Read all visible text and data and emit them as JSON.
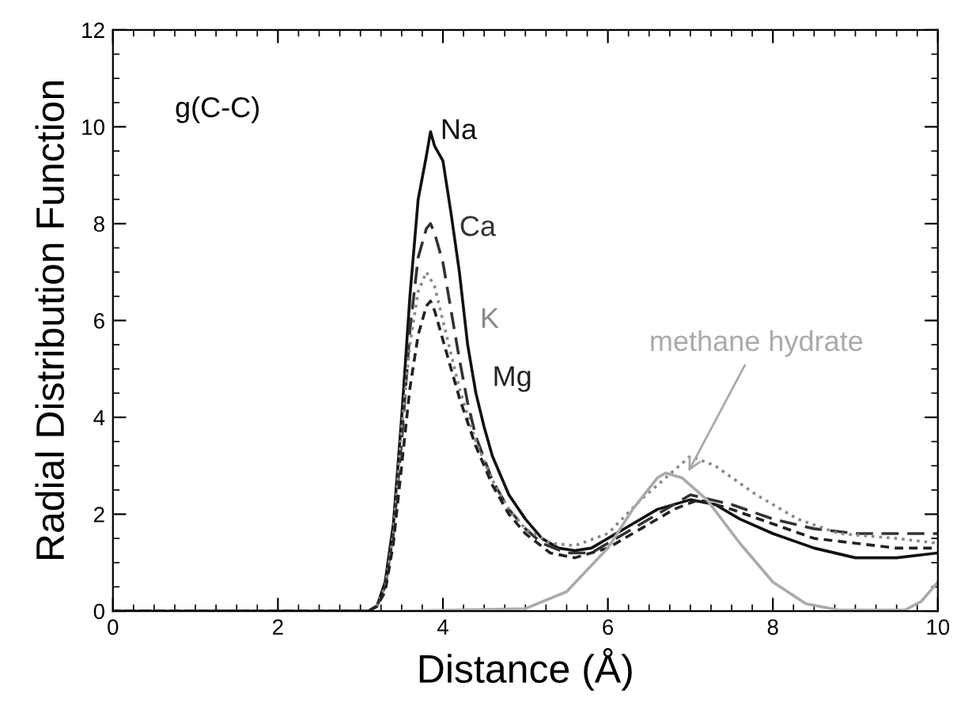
{
  "chart_data": {
    "type": "line",
    "xlabel": "Distance (Å)",
    "ylabel": "Radial Distribution Function",
    "annotations": [
      "g(C-C)"
    ],
    "xlim": [
      0,
      10
    ],
    "ylim": [
      0,
      12
    ],
    "xticks": [
      0,
      2,
      4,
      6,
      8,
      10
    ],
    "yticks": [
      0,
      2,
      4,
      6,
      8,
      10,
      12
    ],
    "grid": false,
    "legend": false,
    "series": [
      {
        "name": "Na",
        "color": "#111111",
        "line_style": "solid",
        "x": [
          0,
          3.1,
          3.2,
          3.3,
          3.4,
          3.5,
          3.6,
          3.7,
          3.8,
          3.85,
          3.9,
          4.0,
          4.1,
          4.2,
          4.3,
          4.4,
          4.5,
          4.6,
          4.8,
          5.0,
          5.2,
          5.4,
          5.6,
          5.8,
          6.0,
          6.3,
          6.6,
          7.0,
          7.3,
          7.6,
          8.0,
          8.5,
          9.0,
          9.5,
          10
        ],
        "values": [
          0,
          0,
          0.1,
          0.6,
          1.8,
          4.0,
          6.5,
          8.5,
          9.4,
          9.9,
          9.6,
          9.3,
          8.2,
          7.0,
          5.5,
          4.5,
          3.8,
          3.2,
          2.4,
          1.9,
          1.5,
          1.3,
          1.25,
          1.3,
          1.5,
          1.8,
          2.1,
          2.3,
          2.2,
          1.9,
          1.6,
          1.3,
          1.1,
          1.1,
          1.2
        ]
      },
      {
        "name": "Ca",
        "color": "#333333",
        "line_style": "dashed",
        "x": [
          0,
          3.1,
          3.2,
          3.3,
          3.4,
          3.5,
          3.6,
          3.7,
          3.8,
          3.85,
          3.9,
          4.0,
          4.1,
          4.2,
          4.3,
          4.4,
          4.6,
          4.8,
          5.0,
          5.2,
          5.5,
          5.8,
          6.0,
          6.4,
          7.0,
          7.5,
          8.0,
          8.5,
          9.0,
          9.5,
          10
        ],
        "values": [
          0,
          0,
          0.1,
          0.5,
          1.6,
          3.5,
          5.8,
          7.3,
          7.9,
          8.0,
          7.8,
          7.2,
          6.2,
          5.2,
          4.3,
          3.6,
          2.7,
          2.1,
          1.7,
          1.4,
          1.2,
          1.2,
          1.4,
          1.8,
          2.4,
          2.2,
          1.9,
          1.7,
          1.6,
          1.6,
          1.6
        ]
      },
      {
        "name": "K",
        "color": "#888888",
        "line_style": "dotted",
        "x": [
          0,
          3.1,
          3.2,
          3.3,
          3.4,
          3.5,
          3.6,
          3.7,
          3.8,
          3.9,
          4.0,
          4.2,
          4.4,
          4.6,
          4.8,
          5.0,
          5.3,
          5.6,
          6.0,
          6.4,
          6.8,
          7.0,
          7.3,
          7.8,
          8.3,
          8.8,
          9.5,
          10
        ],
        "values": [
          0,
          0,
          0.1,
          0.5,
          1.6,
          3.8,
          5.5,
          6.6,
          7.0,
          6.7,
          6.0,
          4.6,
          3.5,
          2.7,
          2.1,
          1.7,
          1.4,
          1.35,
          1.6,
          2.3,
          2.9,
          3.2,
          3.0,
          2.4,
          1.9,
          1.6,
          1.5,
          1.4
        ]
      },
      {
        "name": "Mg",
        "color": "#222222",
        "line_style": "dashed",
        "x": [
          0,
          3.1,
          3.2,
          3.3,
          3.4,
          3.5,
          3.6,
          3.7,
          3.8,
          3.85,
          3.9,
          4.0,
          4.2,
          4.4,
          4.6,
          4.8,
          5.0,
          5.3,
          5.6,
          6.0,
          6.4,
          6.8,
          7.1,
          7.5,
          8.0,
          8.5,
          9.0,
          9.5,
          10
        ],
        "values": [
          0,
          0,
          0.1,
          0.4,
          1.4,
          3.0,
          4.6,
          5.7,
          6.3,
          6.4,
          6.2,
          5.6,
          4.4,
          3.4,
          2.6,
          2.0,
          1.6,
          1.2,
          1.1,
          1.3,
          1.7,
          2.1,
          2.3,
          2.1,
          1.8,
          1.5,
          1.4,
          1.3,
          1.3
        ]
      },
      {
        "name": "methane hydrate",
        "color": "#aaaaaa",
        "line_style": "solid",
        "x": [
          3.5,
          5.0,
          5.5,
          6.0,
          6.3,
          6.6,
          6.7,
          6.9,
          7.2,
          7.6,
          8.0,
          8.4,
          8.8,
          9.6,
          9.8,
          10
        ],
        "values": [
          0,
          0.05,
          0.4,
          1.3,
          2.1,
          2.75,
          2.85,
          2.75,
          2.3,
          1.4,
          0.6,
          0.15,
          0.02,
          0.02,
          0.2,
          0.6
        ]
      }
    ]
  }
}
